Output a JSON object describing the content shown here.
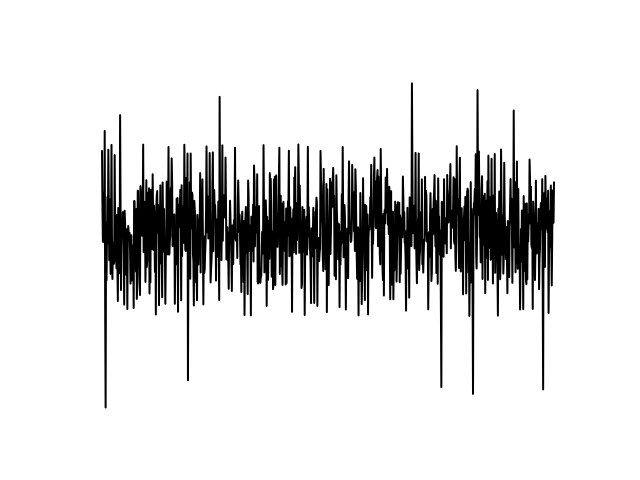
{
  "chart_data": {
    "type": "line",
    "title": "",
    "xlabel": "",
    "ylabel": "",
    "axes_visible": false,
    "grid": false,
    "legend": "none",
    "line_color": "#000000",
    "xlim": [
      0,
      1000
    ],
    "ylim": [
      -4.0,
      3.5
    ],
    "series": [
      {
        "description_of_shape": "dense stationary noise signal, roughly symmetric around zero",
        "n_points": 1000,
        "typical_envelope": [
          -1.2,
          1.2
        ],
        "peaks": [
          {
            "x": 6,
            "y": 2.2
          },
          {
            "x": 40,
            "y": 2.55
          },
          {
            "x": 260,
            "y": 2.95
          },
          {
            "x": 685,
            "y": 3.25
          },
          {
            "x": 750,
            "y": 3.0
          },
          {
            "x": 830,
            "y": 3.1
          },
          {
            "x": 910,
            "y": 2.65
          }
        ],
        "troughs": [
          {
            "x": 8,
            "y": -3.9
          },
          {
            "x": 190,
            "y": -3.3
          },
          {
            "x": 750,
            "y": -3.45
          },
          {
            "x": 820,
            "y": -3.6
          },
          {
            "x": 975,
            "y": -3.5
          }
        ]
      }
    ]
  }
}
